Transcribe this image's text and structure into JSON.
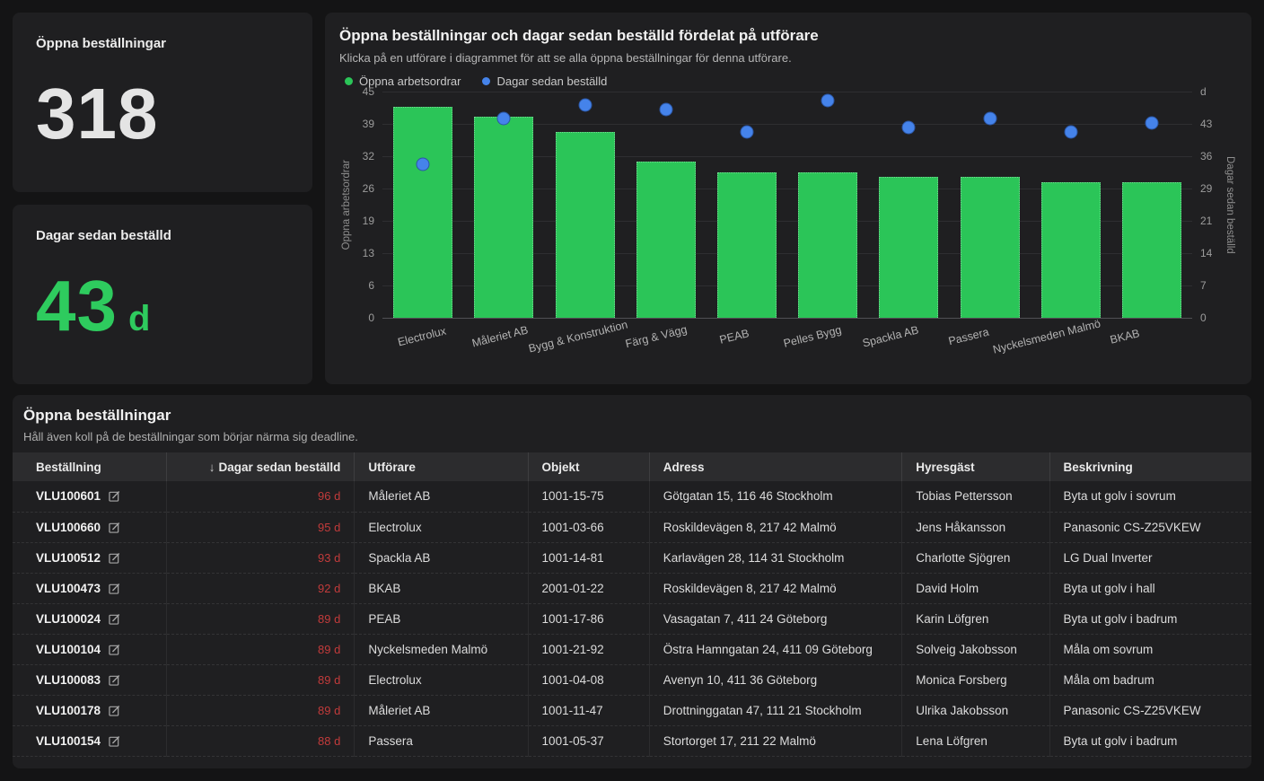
{
  "colors": {
    "green": "#2bc558",
    "blue": "#4583ea",
    "red": "#c23b3b"
  },
  "kpi_cards": [
    {
      "title": "Öppna beställningar",
      "value": "318",
      "unit": ""
    },
    {
      "title": "Dagar sedan beställd",
      "value": "43",
      "unit": "d"
    }
  ],
  "chart_card": {
    "title": "Öppna beställningar och dagar sedan beställd fördelat på utförare",
    "subtitle": "Klicka på en utförare i diagrammet för att se alla öppna beställningar för denna utförare.",
    "legend": [
      {
        "label": "Öppna arbetsordrar",
        "color": "#2bc558"
      },
      {
        "label": "Dagar sedan beställd",
        "color": "#4583ea"
      }
    ]
  },
  "chart_data": {
    "type": "bar",
    "categories": [
      "Electrolux",
      "Måleriet AB",
      "Bygg & Konstruktion",
      "Färg & Vägg",
      "PEAB",
      "Pelles Bygg",
      "Spackla AB",
      "Passera",
      "Nyckelsmeden Malmö",
      "BKAB"
    ],
    "series": [
      {
        "name": "Öppna arbetsordrar",
        "type": "bar",
        "axis": "left",
        "values": [
          42,
          40,
          37,
          31,
          29,
          29,
          28,
          28,
          27,
          27
        ]
      },
      {
        "name": "Dagar sedan beställd",
        "type": "scatter",
        "axis": "right",
        "values": [
          34,
          44,
          47,
          46,
          41,
          48,
          42,
          44,
          41,
          43
        ]
      }
    ],
    "left_axis": {
      "label": "Öppna arbetsordrar",
      "max": 45,
      "ticks": [
        "45",
        "39",
        "32",
        "26",
        "19",
        "13",
        "6",
        "0"
      ]
    },
    "right_axis": {
      "label": "Dagar sedan beställd",
      "unit": "d",
      "max": 50,
      "ticks": [
        "d",
        "43",
        "36",
        "29",
        "21",
        "14",
        "7",
        "0"
      ]
    },
    "grid": true,
    "legend_position": "top-left"
  },
  "table_card": {
    "title": "Öppna beställningar",
    "subtitle": "Håll även koll på de beställningar som börjar närma sig deadline.",
    "sort_icon": "↓",
    "sorted_column_index": 1,
    "columns": [
      "Beställning",
      "Dagar sedan beställd",
      "Utförare",
      "Objekt",
      "Adress",
      "Hyresgäst",
      "Beskrivning"
    ],
    "column_widths": [
      "12.4%",
      "15.2%",
      "14.0%",
      "9.8%",
      "20.4%",
      "11.9%",
      "16.3%"
    ],
    "rows": [
      {
        "order": "VLU100601",
        "days": "96 d",
        "contractor": "Måleriet AB",
        "object": "1001-15-75",
        "address": "Götgatan 15, 116 46 Stockholm",
        "tenant": "Tobias Pettersson",
        "description": "Byta ut golv i sovrum"
      },
      {
        "order": "VLU100660",
        "days": "95 d",
        "contractor": "Electrolux",
        "object": "1001-03-66",
        "address": "Roskildevägen 8, 217 42 Malmö",
        "tenant": "Jens Håkansson",
        "description": "Panasonic CS-Z25VKEW"
      },
      {
        "order": "VLU100512",
        "days": "93 d",
        "contractor": "Spackla AB",
        "object": "1001-14-81",
        "address": "Karlavägen 28, 114 31 Stockholm",
        "tenant": "Charlotte Sjögren",
        "description": "LG Dual Inverter"
      },
      {
        "order": "VLU100473",
        "days": "92 d",
        "contractor": "BKAB",
        "object": "2001-01-22",
        "address": "Roskildevägen 8, 217 42 Malmö",
        "tenant": "David Holm",
        "description": "Byta ut golv i hall"
      },
      {
        "order": "VLU100024",
        "days": "89 d",
        "contractor": "PEAB",
        "object": "1001-17-86",
        "address": "Vasagatan 7, 411 24 Göteborg",
        "tenant": "Karin Löfgren",
        "description": "Byta ut golv i badrum"
      },
      {
        "order": "VLU100104",
        "days": "89 d",
        "contractor": "Nyckelsmeden Malmö",
        "object": "1001-21-92",
        "address": "Östra Hamngatan 24, 411 09 Göteborg",
        "tenant": "Solveig Jakobsson",
        "description": "Måla om sovrum"
      },
      {
        "order": "VLU100083",
        "days": "89 d",
        "contractor": "Electrolux",
        "object": "1001-04-08",
        "address": "Avenyn 10, 411 36 Göteborg",
        "tenant": "Monica Forsberg",
        "description": "Måla om badrum"
      },
      {
        "order": "VLU100178",
        "days": "89 d",
        "contractor": "Måleriet AB",
        "object": "1001-11-47",
        "address": "Drottninggatan 47, 111 21 Stockholm",
        "tenant": "Ulrika Jakobsson",
        "description": "Panasonic CS-Z25VKEW"
      },
      {
        "order": "VLU100154",
        "days": "88 d",
        "contractor": "Passera",
        "object": "1001-05-37",
        "address": "Stortorget 17, 211 22 Malmö",
        "tenant": "Lena Löfgren",
        "description": "Byta ut golv i badrum"
      }
    ]
  }
}
